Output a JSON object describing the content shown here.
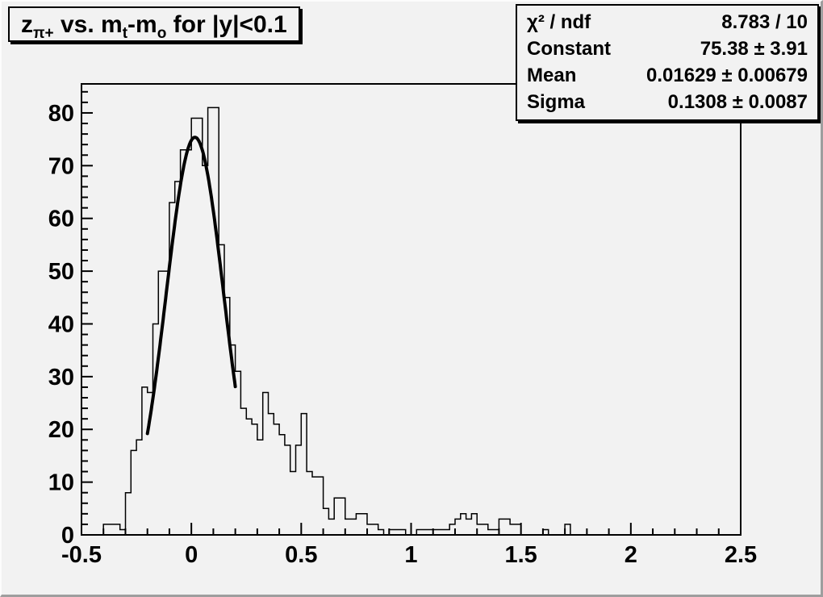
{
  "window": {
    "background": "#f2f2f2",
    "edge_dark": "#9e9e9e",
    "edge_light": "#fcfcfc",
    "line_color": "#000000"
  },
  "title_box": {
    "prefix": "z",
    "prefix_sub": "π+",
    "seg1": " vs. m",
    "seg1_sub": "t",
    "seg2": "-m",
    "seg2_sub": "o",
    "suffix": " for |y|<0.1"
  },
  "stats_box": {
    "rows": [
      {
        "label": "χ² / ndf",
        "value": "8.783 / 10"
      },
      {
        "label": "Constant",
        "value": "75.38 ± 3.91"
      },
      {
        "label": "Mean",
        "value": "0.01629 ± 0.00679"
      },
      {
        "label": "Sigma",
        "value": "0.1308 ± 0.0087"
      }
    ]
  },
  "chart_data": {
    "type": "bar",
    "render_style": "root-step-histogram",
    "title": "z_{π+} vs. m_{t}-m_{o} for |y|<0.1",
    "xlabel": "",
    "ylabel": "",
    "x_range": [
      -0.5,
      2.5
    ],
    "y_range": [
      0,
      85.5
    ],
    "grid": false,
    "legend": false,
    "bin_start": -0.5,
    "bin_width": 0.025,
    "bins": [
      0,
      0,
      0,
      0,
      2,
      2,
      2,
      1,
      8,
      16,
      18,
      28,
      27,
      40,
      50,
      50,
      63,
      67,
      73,
      73,
      79,
      79,
      70,
      81,
      81,
      55,
      45,
      36,
      31,
      24,
      22,
      21,
      18,
      27,
      23,
      21,
      19,
      17,
      12,
      17,
      23,
      12,
      11,
      11,
      5,
      3,
      7,
      7,
      3,
      3,
      4,
      4,
      2,
      2,
      1,
      0,
      1,
      1,
      1,
      0,
      0,
      1,
      1,
      1,
      1,
      1,
      1,
      2,
      3,
      4,
      3,
      4,
      2,
      2,
      1,
      1,
      3,
      3,
      2,
      2,
      0,
      0,
      0,
      0,
      1,
      0,
      0,
      0,
      2,
      0,
      0,
      0,
      0,
      0,
      0,
      0,
      0,
      0,
      0,
      0,
      0,
      0,
      0,
      0,
      0,
      0,
      0,
      0,
      0,
      0,
      0,
      0,
      0,
      0,
      0,
      0,
      0,
      0,
      0,
      0
    ],
    "x_major_ticks": [
      -0.5,
      0,
      0.5,
      1,
      1.5,
      2,
      2.5
    ],
    "x_tick_labels": [
      "-0.5",
      "0",
      "0.5",
      "1",
      "1.5",
      "2",
      "2.5"
    ],
    "x_minor_step": 0.1,
    "y_major_ticks": [
      0,
      10,
      20,
      30,
      40,
      50,
      60,
      70,
      80
    ],
    "y_tick_labels": [
      "0",
      "10",
      "20",
      "30",
      "40",
      "50",
      "60",
      "70",
      "80"
    ],
    "y_minor_step": 2,
    "fit": {
      "shape": "gaussian",
      "constant": 75.38,
      "mean": 0.01629,
      "sigma": 0.1308,
      "x_from": -0.2,
      "x_to": 0.2
    }
  }
}
